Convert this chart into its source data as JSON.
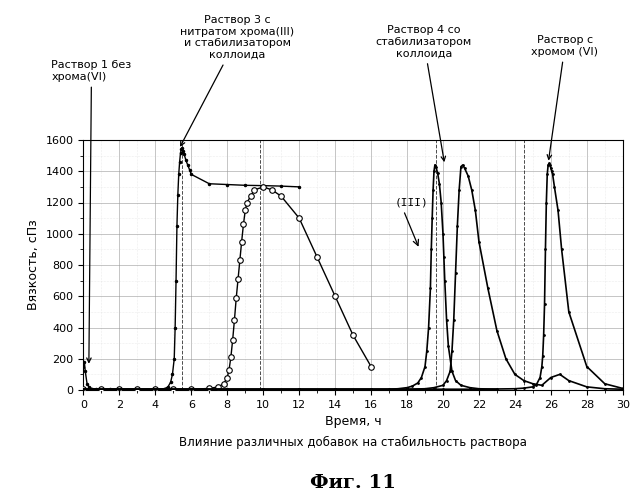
{
  "title": "Влияние различных добавок на стабильность раствора",
  "fig_label": "Фиг. 11",
  "xlabel": "Время, ч",
  "ylabel": "Вязкость, сПз",
  "xlim": [
    0,
    30
  ],
  "ylim": [
    0,
    1600
  ],
  "xticks": [
    0,
    2,
    4,
    6,
    8,
    10,
    12,
    14,
    16,
    18,
    20,
    22,
    24,
    26,
    28,
    30
  ],
  "yticks": [
    0,
    200,
    400,
    600,
    800,
    1000,
    1200,
    1400,
    1600
  ],
  "background_color": "#ffffff",
  "grid_major_color": "#999999",
  "grid_minor_color": "#cccccc",
  "ann1_text": "Раствор 1 без\nхрома(VI)",
  "ann2_text": "Раствор 3 с\nнитратом хрома(III)\nи стабилизатором\nколлоида",
  "ann3_text": "Раствор 4 со\nстабилизатором\nколлоида",
  "ann4_text": "Раствор с\nхромом (VI)",
  "ann_iii_text": "(III)",
  "curve1_x": [
    0,
    0.05,
    0.1,
    0.2,
    0.3,
    0.5,
    0.7,
    1.0,
    1.5,
    2.0,
    3.0,
    4.0,
    4.5,
    4.7,
    4.85,
    4.95,
    5.05,
    5.1,
    5.15,
    5.2,
    5.25,
    5.3,
    5.35,
    5.4,
    5.45,
    5.5,
    5.55,
    5.6,
    5.7,
    5.8,
    5.9,
    6.0,
    7.0,
    8.0,
    9.0,
    10.0,
    11.0,
    12.0
  ],
  "curve1_y": [
    150,
    180,
    120,
    40,
    20,
    8,
    5,
    5,
    5,
    5,
    5,
    5,
    8,
    20,
    50,
    100,
    200,
    400,
    700,
    1050,
    1250,
    1380,
    1460,
    1520,
    1540,
    1550,
    1530,
    1510,
    1470,
    1440,
    1410,
    1380,
    1320,
    1315,
    1310,
    1308,
    1305,
    1300
  ],
  "curve2_x": [
    0,
    1,
    2,
    3,
    4,
    5,
    6,
    7,
    7.5,
    7.8,
    8.0,
    8.1,
    8.2,
    8.3,
    8.4,
    8.5,
    8.6,
    8.7,
    8.8,
    8.9,
    9.0,
    9.1,
    9.3,
    9.5,
    10.0,
    10.5,
    11.0,
    12.0,
    13.0,
    14.0,
    15.0,
    16.0
  ],
  "curve2_y": [
    5,
    5,
    5,
    5,
    5,
    5,
    5,
    10,
    20,
    40,
    80,
    130,
    210,
    320,
    450,
    590,
    710,
    830,
    950,
    1060,
    1150,
    1200,
    1240,
    1280,
    1300,
    1280,
    1240,
    1100,
    850,
    600,
    350,
    150
  ],
  "curve3_x": [
    0,
    2,
    4,
    6,
    8,
    10,
    12,
    14,
    16,
    17,
    17.5,
    18.0,
    18.3,
    18.6,
    18.8,
    19.0,
    19.1,
    19.2,
    19.3,
    19.35,
    19.4,
    19.45,
    19.5,
    19.55,
    19.6,
    19.7,
    19.8,
    19.9,
    20.0,
    20.05,
    20.1,
    20.2,
    20.3,
    20.5,
    20.7,
    21.0,
    21.5,
    22.0,
    23.0
  ],
  "curve3_y": [
    5,
    5,
    5,
    5,
    5,
    5,
    5,
    5,
    5,
    5,
    8,
    15,
    25,
    45,
    80,
    150,
    250,
    400,
    650,
    900,
    1100,
    1280,
    1400,
    1440,
    1430,
    1390,
    1320,
    1200,
    1000,
    850,
    700,
    450,
    280,
    120,
    60,
    30,
    15,
    8,
    5
  ],
  "curve4_x": [
    0,
    2,
    4,
    6,
    8,
    10,
    12,
    14,
    16,
    18,
    19,
    19.5,
    20.0,
    20.2,
    20.4,
    20.5,
    20.6,
    20.7,
    20.8,
    20.9,
    21.0,
    21.1,
    21.2,
    21.4,
    21.6,
    21.8,
    22.0,
    22.5,
    23.0,
    23.5,
    24.0,
    24.5,
    25.0,
    25.5,
    26.0,
    26.5,
    27.0,
    28.0,
    29.0,
    30.0
  ],
  "curve4_y": [
    5,
    5,
    5,
    5,
    5,
    5,
    5,
    5,
    5,
    5,
    8,
    15,
    30,
    60,
    120,
    250,
    450,
    750,
    1050,
    1280,
    1430,
    1440,
    1420,
    1370,
    1280,
    1150,
    950,
    650,
    380,
    200,
    100,
    60,
    40,
    30,
    80,
    100,
    60,
    20,
    8,
    5
  ],
  "curve5_x": [
    0,
    2,
    4,
    6,
    8,
    10,
    12,
    14,
    16,
    18,
    20,
    22,
    24,
    24.5,
    25.0,
    25.2,
    25.4,
    25.5,
    25.55,
    25.6,
    25.65,
    25.7,
    25.75,
    25.8,
    25.85,
    25.9,
    25.95,
    26.0,
    26.05,
    26.1,
    26.2,
    26.4,
    26.6,
    27.0,
    28.0,
    29.0,
    30.0
  ],
  "curve5_y": [
    5,
    5,
    5,
    5,
    5,
    5,
    5,
    5,
    5,
    5,
    5,
    5,
    8,
    12,
    20,
    35,
    80,
    150,
    220,
    350,
    550,
    900,
    1200,
    1380,
    1440,
    1450,
    1440,
    1420,
    1400,
    1380,
    1300,
    1150,
    900,
    500,
    150,
    40,
    10
  ],
  "vline_positions": [
    5.5,
    9.8,
    19.6,
    24.5
  ]
}
